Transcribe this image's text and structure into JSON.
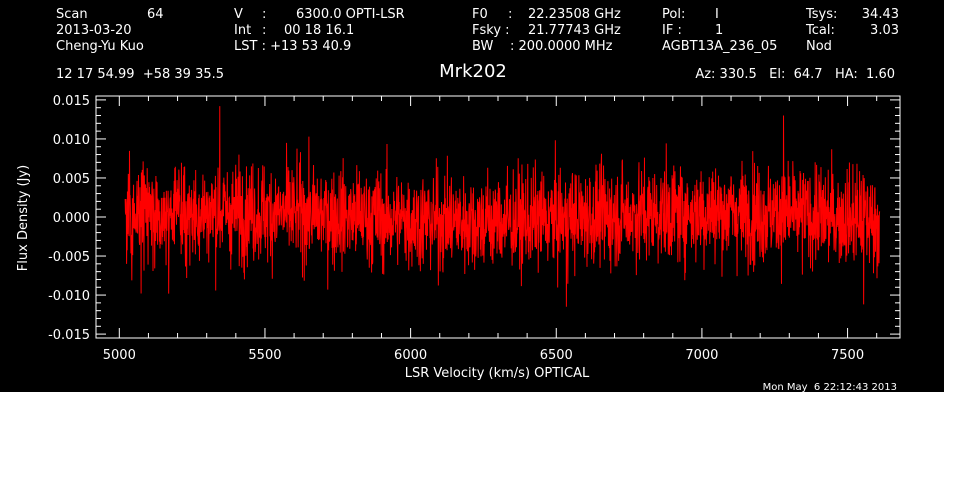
{
  "header": {
    "col1": [
      "Scan",
      "64",
      "2013-03-20",
      "Cheng-Yu Kuo"
    ],
    "col2": [
      "V",
      ":",
      "6300.0 OPTI-LSR",
      "Int",
      ":",
      "00 18 16.1",
      "LST : +13 53 40.9"
    ],
    "col3": [
      "F0",
      ":",
      "22.23508 GHz",
      "Fsky :",
      "21.77743 GHz",
      "BW",
      ": 200.0000 MHz"
    ],
    "col4": [
      "Pol:",
      "I",
      "IF :",
      "1",
      "AGBT13A_236_05"
    ],
    "col5": [
      "Tsys:",
      "34.43",
      "Tcal:",
      "3.03",
      "Nod"
    ],
    "coords": "12 17 54.99  +58 39 35.5",
    "source": "Mrk202",
    "azel": "Az: 330.5   El:  64.7   HA:  1.60",
    "timestamp": "Mon May  6 22:12:43 2013"
  },
  "chart_data": {
    "type": "line",
    "xlabel": "LSR Velocity (km/s) OPTICAL",
    "ylabel": "Flux Density (Jy)",
    "xlim": [
      4920,
      7680
    ],
    "ylim": [
      -0.0155,
      0.0155
    ],
    "x_ticks": [
      "5000",
      "5500",
      "6000",
      "6500",
      "7000",
      "7500"
    ],
    "y_ticks": [
      "0.015",
      "0.010",
      "0.005",
      "0.000",
      "-0.005",
      "-0.010",
      "-0.015"
    ],
    "series": [
      {
        "color": "#ff0000",
        "x_start": 5020,
        "x_end": 7610,
        "noise_sigma": 0.0035,
        "peak_max": 0.0142,
        "trough_min": -0.0115
      }
    ]
  }
}
